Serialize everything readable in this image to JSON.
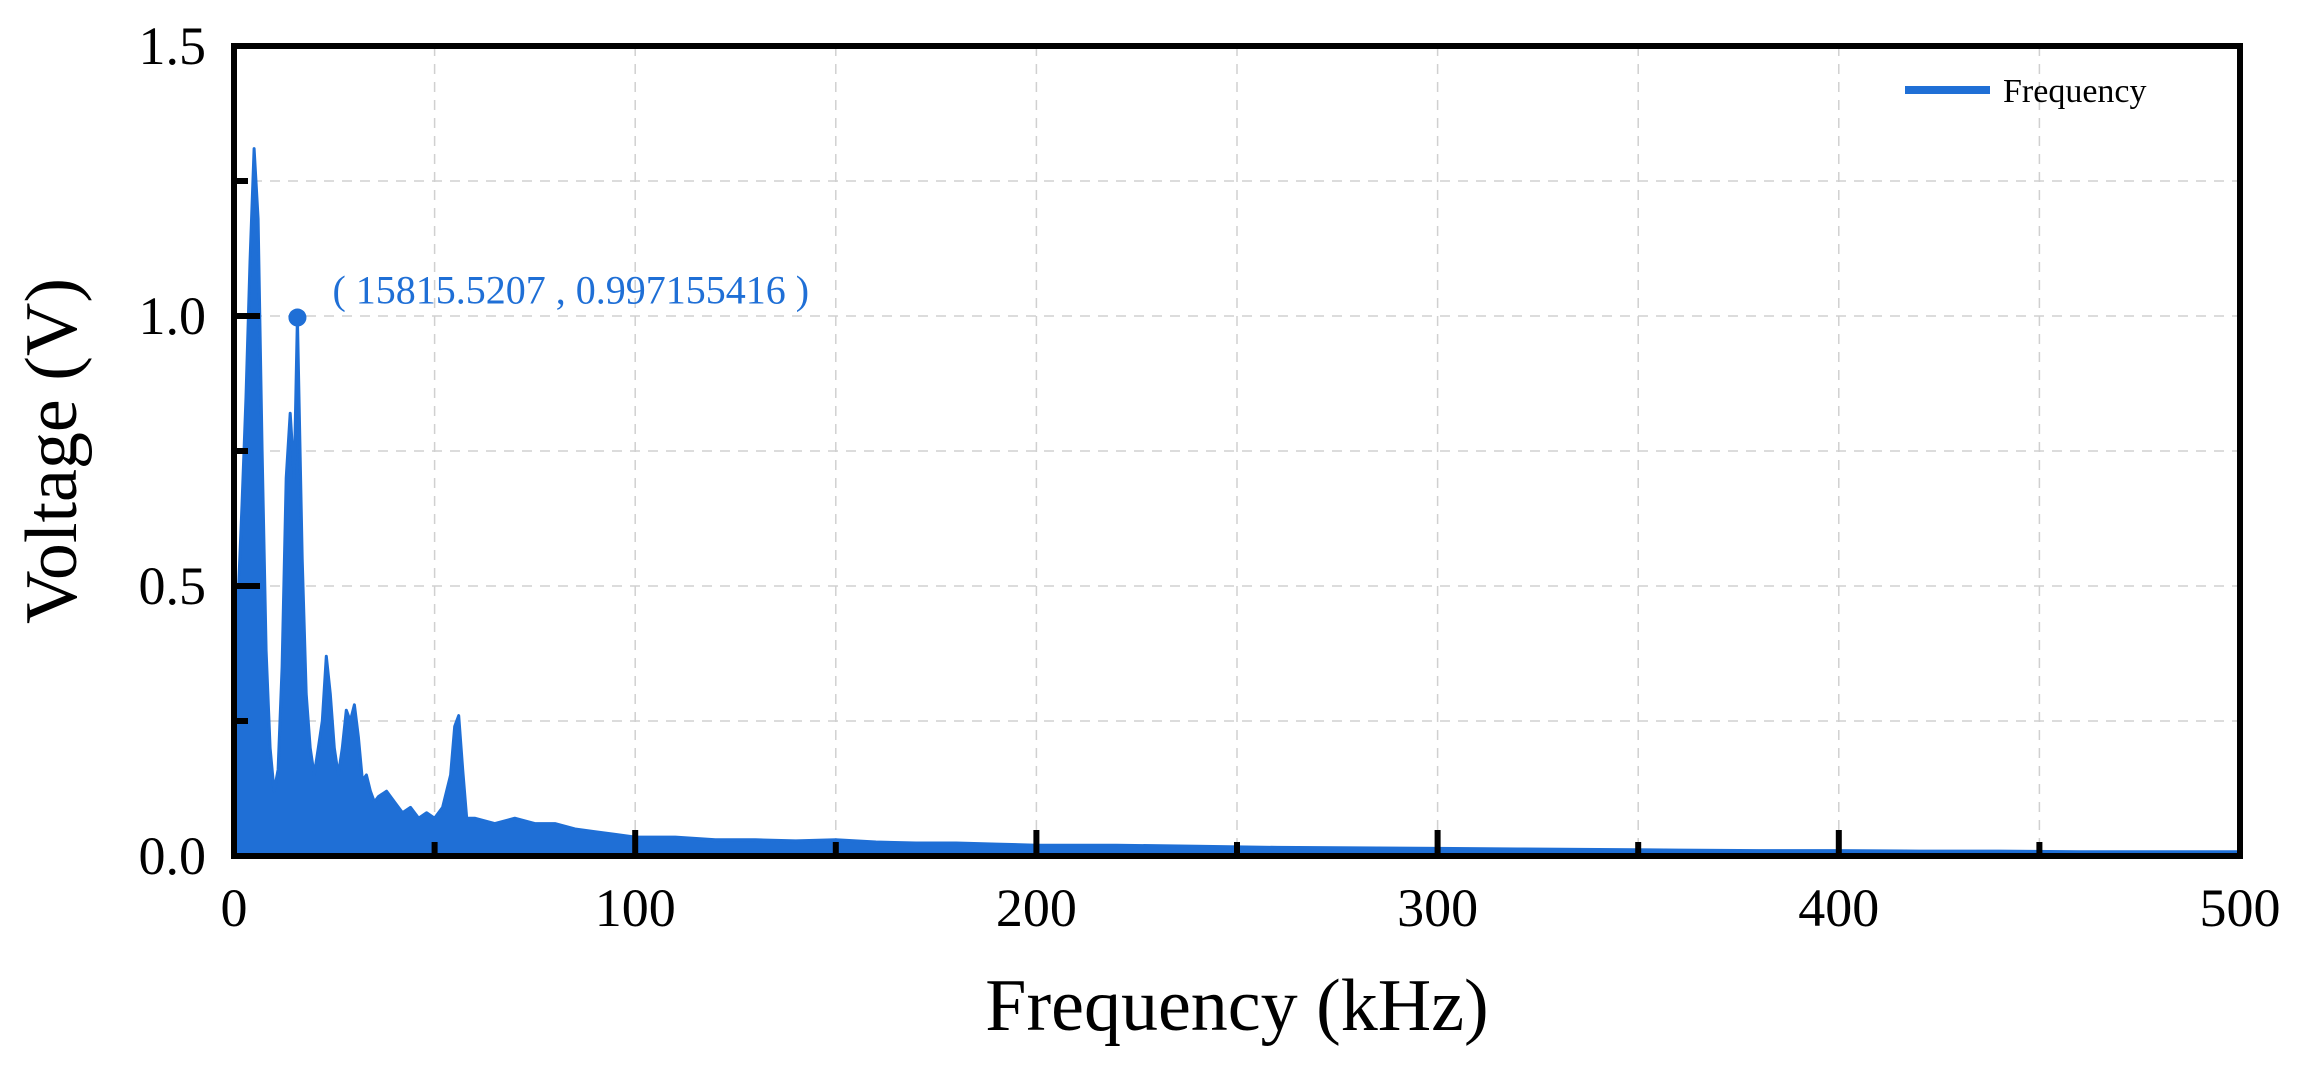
{
  "chart_data": {
    "type": "area",
    "title": "",
    "xlabel": "Frequency (kHz)",
    "ylabel": "Voltage (V)",
    "xlim": [
      0,
      500
    ],
    "ylim": [
      0,
      1.5
    ],
    "x_ticks": [
      0,
      100,
      200,
      300,
      400,
      500
    ],
    "x_tick_labels": [
      "0",
      "100",
      "200",
      "300",
      "400",
      "500"
    ],
    "y_ticks": [
      0,
      0.5,
      1.0,
      1.5
    ],
    "y_tick_labels": [
      "0.0",
      "0.5",
      "1.0",
      "1.5"
    ],
    "grid": true,
    "legend": {
      "position": "top-right",
      "entries": [
        "Frequency"
      ]
    },
    "series": [
      {
        "name": "Frequency",
        "color": "#1f6fd6",
        "x": [
          0,
          1,
          2,
          3,
          4,
          5,
          6,
          7,
          8,
          9,
          10,
          11,
          12,
          13,
          14,
          15,
          15.8,
          17,
          18,
          19,
          20,
          21,
          22,
          23,
          24,
          25,
          26,
          27,
          28,
          29,
          30,
          31,
          32,
          33,
          34,
          35,
          36,
          38,
          40,
          42,
          44,
          46,
          48,
          50,
          52,
          54,
          55,
          56,
          57,
          58,
          60,
          65,
          70,
          75,
          80,
          85,
          90,
          95,
          100,
          110,
          120,
          130,
          140,
          150,
          160,
          170,
          180,
          190,
          200,
          220,
          240,
          260,
          280,
          300,
          320,
          340,
          360,
          380,
          400,
          420,
          440,
          460,
          480,
          500
        ],
        "values": [
          0.32,
          0.47,
          0.65,
          0.85,
          1.1,
          1.31,
          1.18,
          0.75,
          0.38,
          0.2,
          0.12,
          0.16,
          0.35,
          0.7,
          0.82,
          0.7,
          0.997,
          0.55,
          0.3,
          0.2,
          0.15,
          0.2,
          0.25,
          0.37,
          0.3,
          0.2,
          0.15,
          0.2,
          0.27,
          0.25,
          0.28,
          0.22,
          0.14,
          0.15,
          0.12,
          0.1,
          0.11,
          0.12,
          0.1,
          0.08,
          0.09,
          0.07,
          0.08,
          0.07,
          0.09,
          0.15,
          0.24,
          0.26,
          0.16,
          0.07,
          0.07,
          0.06,
          0.07,
          0.06,
          0.06,
          0.05,
          0.045,
          0.04,
          0.035,
          0.035,
          0.03,
          0.03,
          0.028,
          0.03,
          0.026,
          0.024,
          0.024,
          0.022,
          0.02,
          0.02,
          0.018,
          0.016,
          0.015,
          0.014,
          0.013,
          0.012,
          0.011,
          0.01,
          0.01,
          0.009,
          0.009,
          0.008,
          0.008,
          0.008
        ]
      }
    ],
    "annotation": {
      "x": 15.8155207,
      "y": 0.997155416,
      "text": "( 15815.5207 , 0.997155416 )"
    }
  }
}
